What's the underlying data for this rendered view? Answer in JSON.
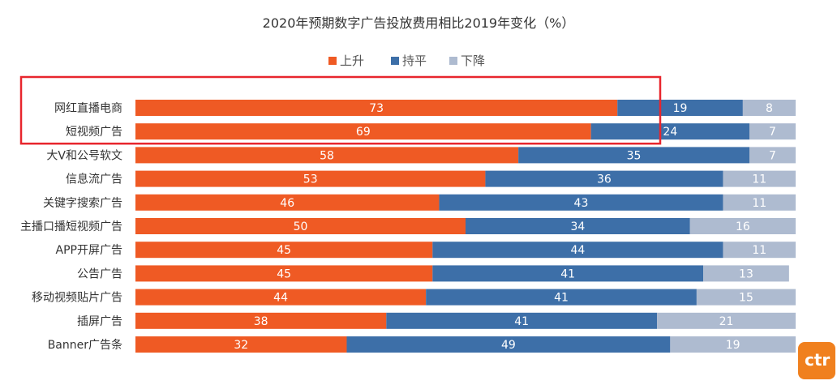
{
  "chart_data": {
    "type": "bar",
    "orientation": "horizontal",
    "stacked": true,
    "title": "2020年预期数字广告投放费用相比2019年变化（%）",
    "legend_position": "top-center",
    "categories": [
      "网红直播电商",
      "短视频广告",
      "大V和公号软文",
      "信息流广告",
      "关键字搜索广告",
      "主播口播短视频广告",
      "APP开屏广告",
      "公告广告",
      "移动视频贴片广告",
      "插屏广告",
      "Banner广告条"
    ],
    "series": [
      {
        "name": "上升",
        "color": "#ef5a24",
        "values": [
          73,
          69,
          58,
          53,
          46,
          50,
          45,
          45,
          44,
          38,
          32
        ]
      },
      {
        "name": "持平",
        "color": "#3d6fa8",
        "values": [
          19,
          24,
          35,
          36,
          43,
          34,
          44,
          41,
          41,
          41,
          49
        ]
      },
      {
        "name": "下降",
        "color": "#aebbd0",
        "values": [
          8,
          7,
          7,
          11,
          11,
          16,
          11,
          13,
          15,
          21,
          19
        ]
      }
    ],
    "xlim": [
      0,
      100
    ],
    "grid": false,
    "highlight": {
      "categories": [
        "网红直播电商",
        "短视频广告"
      ],
      "color": "#e8262d"
    }
  },
  "logo": {
    "text": "ctr",
    "color": "#f0801e"
  }
}
